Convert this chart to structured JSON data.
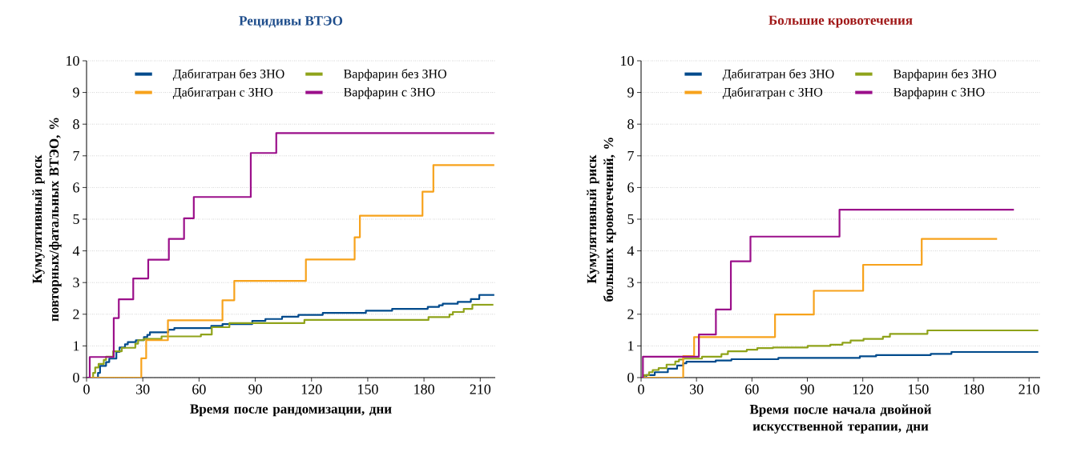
{
  "chart_data": [
    {
      "type": "step",
      "title": "Рецидивы ВТЭО",
      "xlabel": "Время после рандомизации, дни",
      "ylabel": "Кумулятивный риск повторных/фатальных ВТЭО, %",
      "xlim": [
        0,
        218
      ],
      "ylim": [
        0,
        10
      ],
      "xticks": [
        0,
        30,
        60,
        90,
        120,
        150,
        180,
        210
      ],
      "yticks": [
        0,
        1,
        2,
        3,
        4,
        5,
        6,
        7,
        8,
        9,
        10
      ],
      "grid": "y",
      "legend": "top",
      "line_style": "solid",
      "marker": "none",
      "series": [
        {
          "name": "Дабигатран без ЗНО",
          "color": "#004a8c",
          "x": [
            0,
            6.1,
            7.2,
            10.4,
            12.1,
            15.9,
            17.6,
            20.5,
            22,
            26.3,
            30.6,
            32.4,
            33.8,
            43.6,
            46.8,
            66.5,
            72.5,
            88.4,
            95.4,
            104.3,
            113,
            126,
            149,
            163,
            182,
            188,
            190,
            198,
            205,
            209.5,
            217.5
          ],
          "values": [
            0,
            0.15,
            0.37,
            0.49,
            0.6,
            0.81,
            0.95,
            1.05,
            1.12,
            1.18,
            1.28,
            1.35,
            1.43,
            1.51,
            1.56,
            1.63,
            1.69,
            1.79,
            1.85,
            1.92,
            1.98,
            2.04,
            2.11,
            2.17,
            2.23,
            2.28,
            2.33,
            2.39,
            2.48,
            2.61,
            2.61
          ]
        },
        {
          "name": "Варфарин без ЗНО",
          "color": "#8fa31a",
          "x": [
            0,
            3.5,
            4.6,
            6.4,
            9.2,
            10.4,
            14.2,
            18.8,
            26,
            27.5,
            30.6,
            40,
            61,
            66.8,
            76.2,
            116.2,
            182.4,
            193.6,
            195.4,
            201.2,
            205.8,
            217
          ],
          "values": [
            0,
            0.15,
            0.32,
            0.43,
            0.56,
            0.66,
            0.83,
            0.94,
            1.07,
            1.18,
            1.22,
            1.3,
            1.36,
            1.59,
            1.72,
            1.82,
            1.91,
            1.99,
            2.07,
            2.17,
            2.3,
            2.3
          ]
        },
        {
          "name": "Дабигатран с ЗНО",
          "color": "#f7a21b",
          "x": [
            0,
            29.2,
            31.8,
            43.4,
            72.5,
            78.8,
            117,
            143,
            145.8,
            179.2,
            185,
            217.5
          ],
          "values": [
            0,
            0.61,
            1.18,
            1.81,
            2.44,
            3.05,
            3.73,
            4.43,
            5.11,
            5.87,
            6.71,
            6.71
          ]
        },
        {
          "name": "Варфарин с ЗНО",
          "color": "#9b0f8a",
          "x": [
            0,
            1.7,
            14.5,
            17.2,
            24.9,
            32.9,
            43.9,
            52,
            57.2,
            87.6,
            101.2,
            217.5
          ],
          "values": [
            0,
            0.65,
            1.88,
            2.47,
            3.13,
            3.72,
            4.38,
            5.03,
            5.7,
            7.09,
            7.72,
            7.72
          ]
        }
      ]
    },
    {
      "type": "step",
      "title": "Большие кровотечения",
      "xlabel": "Время после начала двойной искусственной терапии, дни",
      "ylabel": "Кумулятивный риск больших кровотечений, %",
      "xlim": [
        0,
        216
      ],
      "ylim": [
        0,
        10
      ],
      "xticks": [
        0,
        30,
        60,
        90,
        120,
        150,
        180,
        210
      ],
      "yticks": [
        0,
        1,
        2,
        3,
        4,
        5,
        6,
        7,
        8,
        9,
        10
      ],
      "grid": "y",
      "legend": "top",
      "line_style": "solid",
      "marker": "none",
      "series": [
        {
          "name": "Дабигатран без ЗНО",
          "color": "#004a8c",
          "x": [
            0,
            2.8,
            7.4,
            14.5,
            19.5,
            22.8,
            24.5,
            40.4,
            48.9,
            74.3,
            118.4,
            127.2,
            156.8,
            168,
            215
          ],
          "values": [
            0,
            0.08,
            0.17,
            0.28,
            0.38,
            0.45,
            0.5,
            0.54,
            0.58,
            0.62,
            0.67,
            0.71,
            0.75,
            0.81,
            0.81
          ]
        },
        {
          "name": "Варфарин без ЗНО",
          "color": "#8fa31a",
          "x": [
            0,
            1.7,
            4.3,
            6.3,
            9.5,
            13.8,
            18.5,
            20.5,
            22.8,
            33,
            43.5,
            47,
            57.2,
            62.9,
            71.4,
            90.2,
            102.4,
            109,
            113.4,
            120.4,
            130.9,
            134.7,
            155,
            215
          ],
          "values": [
            0,
            0.08,
            0.17,
            0.24,
            0.3,
            0.41,
            0.51,
            0.57,
            0.6,
            0.66,
            0.74,
            0.83,
            0.88,
            0.93,
            0.95,
            1.0,
            1.04,
            1.1,
            1.17,
            1.22,
            1.29,
            1.38,
            1.49,
            1.49
          ]
        },
        {
          "name": "Дабигатран с ЗНО",
          "color": "#f7a21b",
          "x": [
            0,
            22.8,
            28.7,
            72.5,
            93.5,
            120.2,
            151.9,
            192.7
          ],
          "values": [
            0,
            0.68,
            1.28,
            1.99,
            2.74,
            3.56,
            4.38,
            4.38
          ]
        },
        {
          "name": "Варфарин с ЗНО",
          "color": "#9b0f8a",
          "x": [
            0,
            1,
            31.3,
            40.5,
            48.6,
            59.2,
            107.4,
            201.8
          ],
          "values": [
            0,
            0.66,
            1.36,
            2.15,
            3.67,
            4.45,
            5.3,
            5.3
          ]
        }
      ]
    }
  ]
}
